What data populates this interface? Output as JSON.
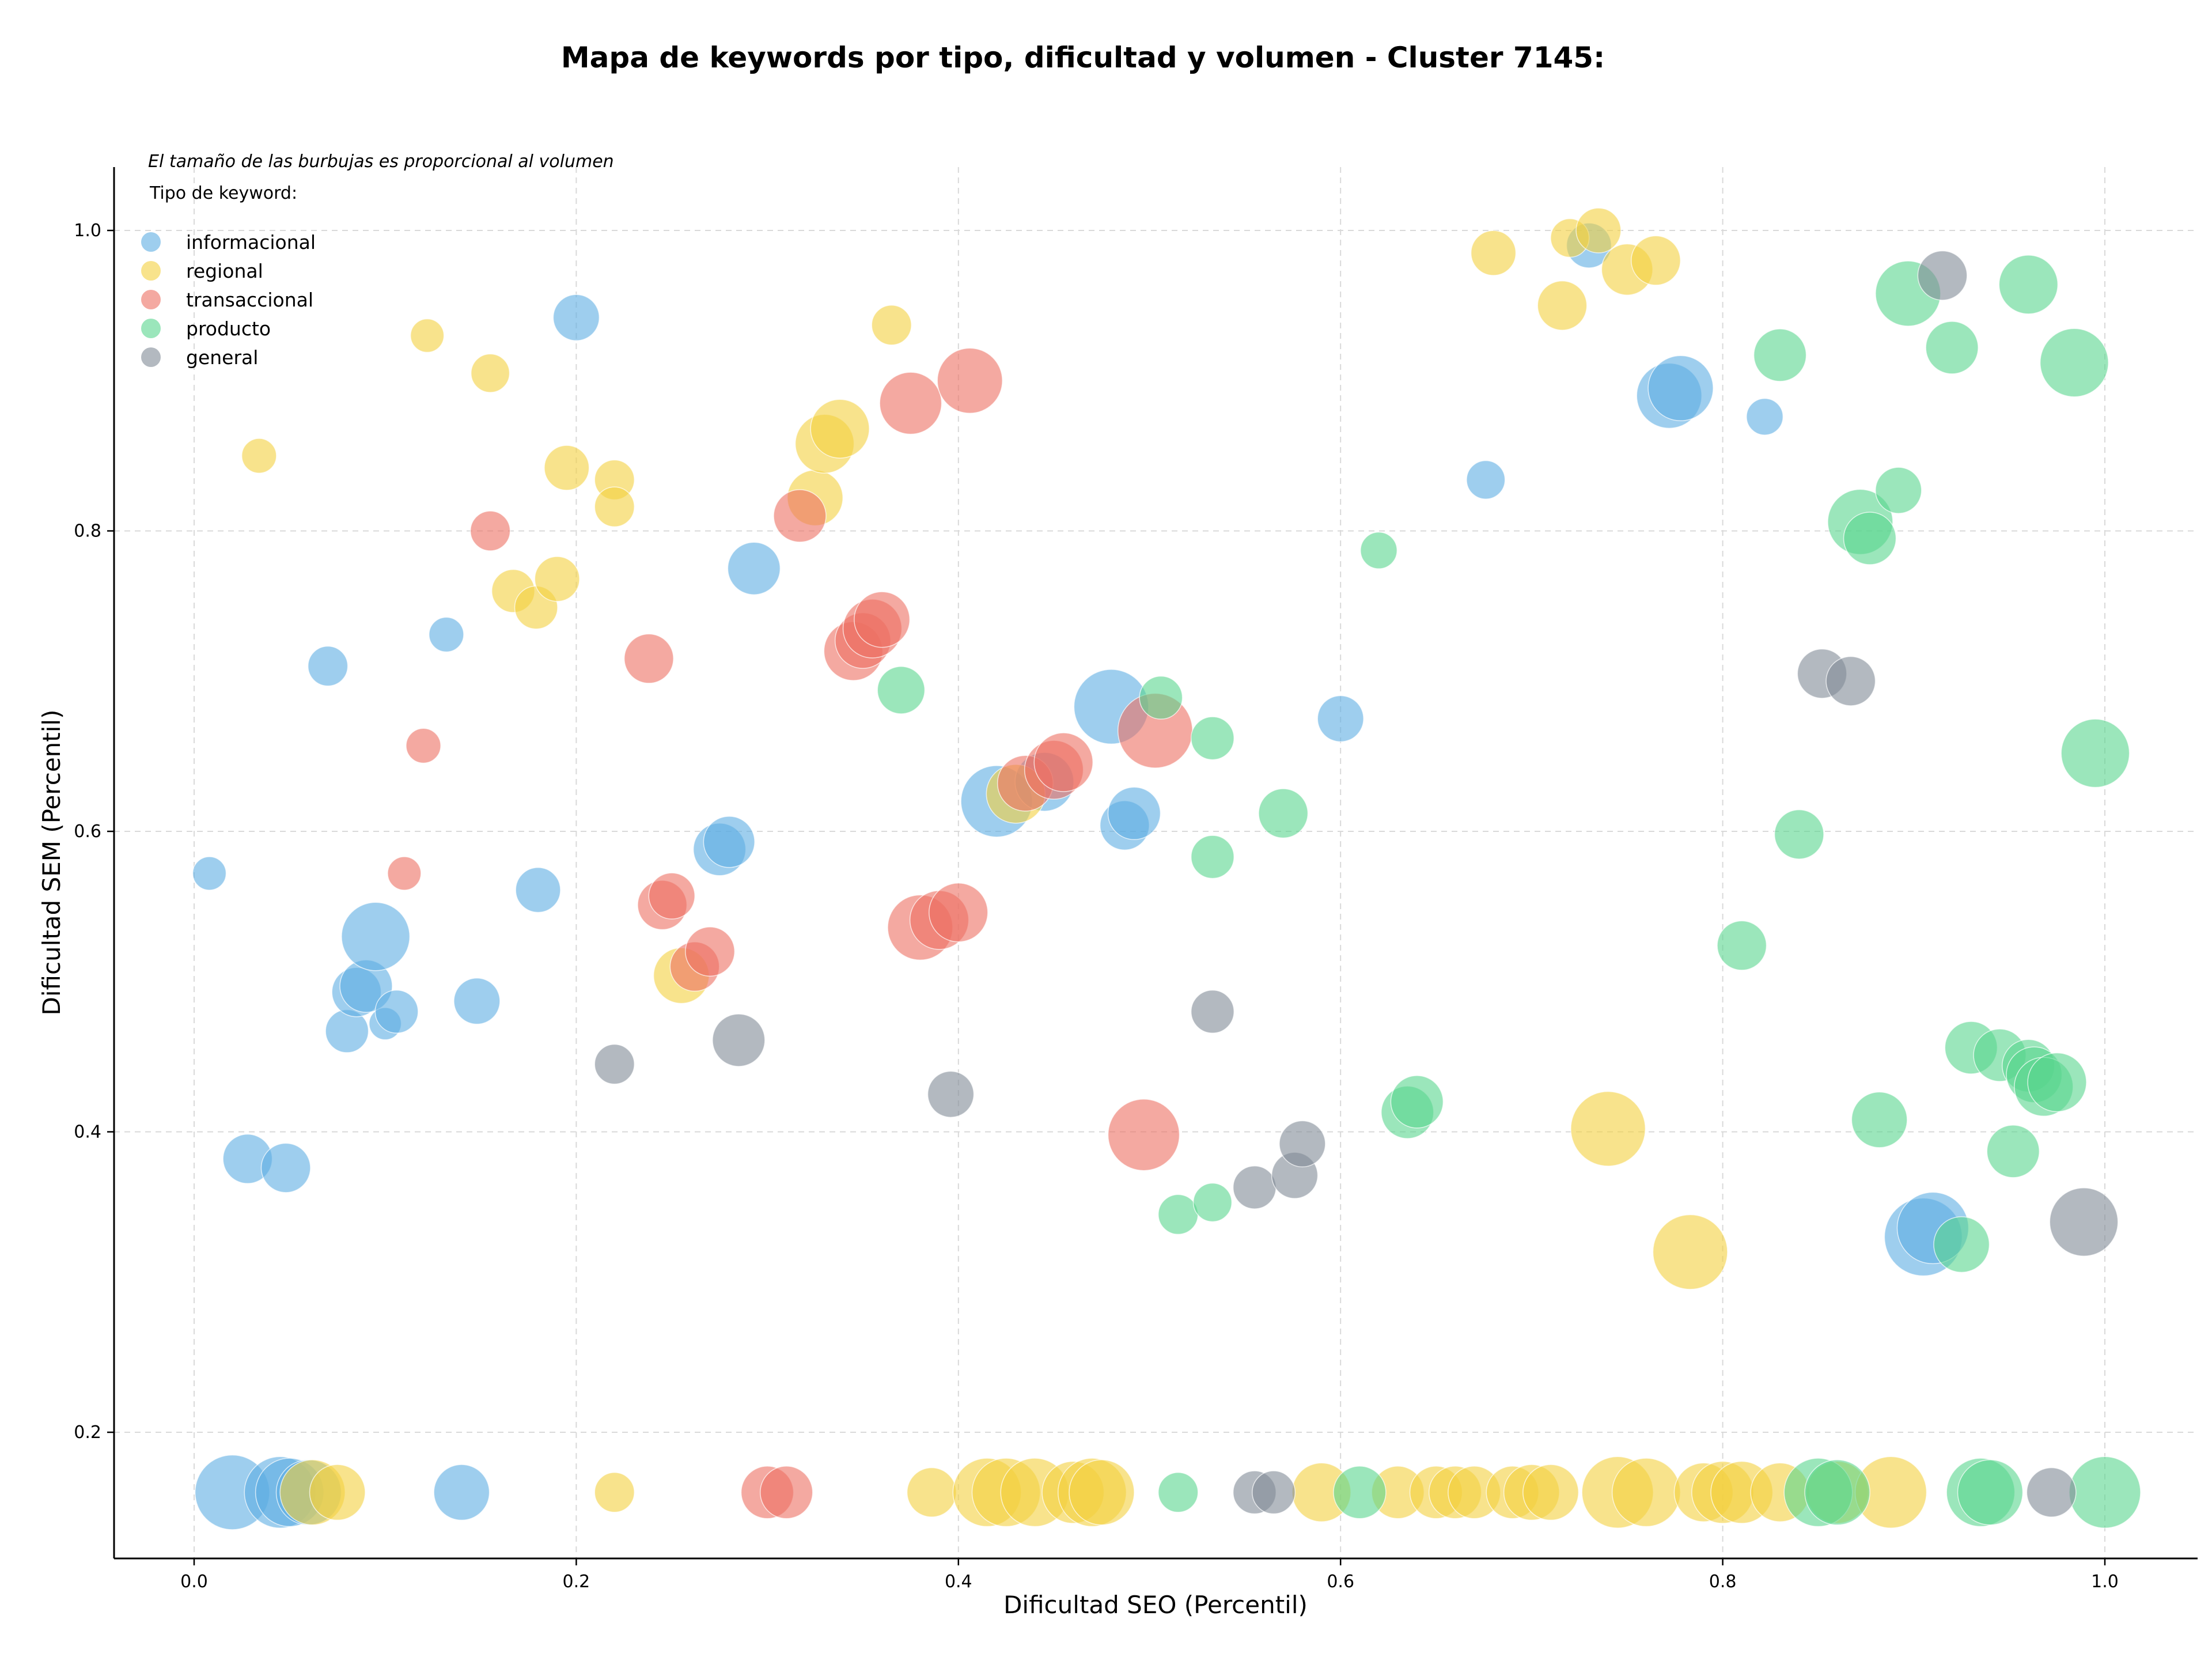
{
  "chart_data": {
    "type": "scatter",
    "title": "Mapa de keywords por tipo, dificultad y volumen - Cluster 7145:",
    "xlabel": "Dificultad SEO (Percentil)",
    "ylabel": "Dificultad SEM (Percentil)",
    "xlim": [
      -0.04,
      1.05
    ],
    "ylim": [
      0.12,
      1.04
    ],
    "xticks": [
      0.0,
      0.2,
      0.4,
      0.6,
      0.8,
      1.0
    ],
    "xtick_labels": [
      "0.0",
      "0.2",
      "0.4",
      "0.6",
      "0.8",
      "1.0"
    ],
    "yticks": [
      0.2,
      0.4,
      0.6,
      0.8,
      1.0
    ],
    "ytick_labels": [
      "0.2",
      "0.4",
      "0.6",
      "0.8",
      "1.0"
    ],
    "grid": true,
    "annotation": "El tamaño de las burbujas es proporcional al volumen",
    "legend_title": "Tipo de keyword:",
    "legend_placement": "upper-left",
    "series": [
      {
        "name": "informacional",
        "color": "#5DADE2",
        "points": [
          [
            0.008,
            0.572,
            0.2
          ],
          [
            0.02,
            0.16,
            0.85
          ],
          [
            0.028,
            0.382,
            0.45
          ],
          [
            0.045,
            0.16,
            0.8
          ],
          [
            0.048,
            0.376,
            0.45
          ],
          [
            0.05,
            0.16,
            0.75
          ],
          [
            0.06,
            0.16,
            0.7
          ],
          [
            0.07,
            0.71,
            0.3
          ],
          [
            0.08,
            0.467,
            0.35
          ],
          [
            0.085,
            0.493,
            0.45
          ],
          [
            0.09,
            0.497,
            0.5
          ],
          [
            0.095,
            0.53,
            0.75
          ],
          [
            0.1,
            0.472,
            0.18
          ],
          [
            0.106,
            0.48,
            0.35
          ],
          [
            0.132,
            0.731,
            0.22
          ],
          [
            0.14,
            0.16,
            0.55
          ],
          [
            0.148,
            0.487,
            0.4
          ],
          [
            0.18,
            0.561,
            0.38
          ],
          [
            0.2,
            0.942,
            0.4
          ],
          [
            0.275,
            0.588,
            0.5
          ],
          [
            0.28,
            0.593,
            0.48
          ],
          [
            0.293,
            0.775,
            0.5
          ],
          [
            0.42,
            0.62,
            0.8
          ],
          [
            0.445,
            0.633,
            0.6
          ],
          [
            0.48,
            0.683,
            0.85
          ],
          [
            0.487,
            0.604,
            0.45
          ],
          [
            0.492,
            0.612,
            0.5
          ],
          [
            0.6,
            0.675,
            0.4
          ],
          [
            0.676,
            0.834,
            0.28
          ],
          [
            0.73,
            0.99,
            0.38
          ],
          [
            0.772,
            0.89,
            0.7
          ],
          [
            0.778,
            0.895,
            0.7
          ],
          [
            0.822,
            0.876,
            0.25
          ],
          [
            0.905,
            0.33,
            0.9
          ],
          [
            0.91,
            0.336,
            0.8
          ]
        ]
      },
      {
        "name": "regional",
        "color": "#F4D03F",
        "points": [
          [
            0.034,
            0.85,
            0.22
          ],
          [
            0.062,
            0.16,
            0.7
          ],
          [
            0.075,
            0.16,
            0.55
          ],
          [
            0.122,
            0.93,
            0.2
          ],
          [
            0.155,
            0.905,
            0.28
          ],
          [
            0.167,
            0.76,
            0.35
          ],
          [
            0.179,
            0.749,
            0.35
          ],
          [
            0.19,
            0.768,
            0.38
          ],
          [
            0.195,
            0.842,
            0.38
          ],
          [
            0.22,
            0.834,
            0.3
          ],
          [
            0.22,
            0.816,
            0.3
          ],
          [
            0.22,
            0.16,
            0.3
          ],
          [
            0.255,
            0.504,
            0.55
          ],
          [
            0.325,
            0.822,
            0.55
          ],
          [
            0.33,
            0.858,
            0.6
          ],
          [
            0.338,
            0.868,
            0.6
          ],
          [
            0.365,
            0.937,
            0.3
          ],
          [
            0.386,
            0.16,
            0.45
          ],
          [
            0.415,
            0.16,
            0.75
          ],
          [
            0.425,
            0.16,
            0.75
          ],
          [
            0.43,
            0.625,
            0.6
          ],
          [
            0.44,
            0.16,
            0.75
          ],
          [
            0.46,
            0.16,
            0.65
          ],
          [
            0.47,
            0.16,
            0.75
          ],
          [
            0.475,
            0.16,
            0.7
          ],
          [
            0.59,
            0.16,
            0.6
          ],
          [
            0.63,
            0.16,
            0.5
          ],
          [
            0.65,
            0.16,
            0.5
          ],
          [
            0.66,
            0.16,
            0.5
          ],
          [
            0.67,
            0.16,
            0.5
          ],
          [
            0.68,
            0.985,
            0.38
          ],
          [
            0.69,
            0.16,
            0.5
          ],
          [
            0.7,
            0.16,
            0.55
          ],
          [
            0.71,
            0.16,
            0.55
          ],
          [
            0.716,
            0.95,
            0.45
          ],
          [
            0.72,
            0.995,
            0.28
          ],
          [
            0.735,
            1.0,
            0.38
          ],
          [
            0.74,
            0.402,
            0.85
          ],
          [
            0.745,
            0.16,
            0.8
          ],
          [
            0.75,
            0.974,
            0.48
          ],
          [
            0.76,
            0.16,
            0.75
          ],
          [
            0.765,
            0.98,
            0.45
          ],
          [
            0.783,
            0.32,
            0.85
          ],
          [
            0.79,
            0.16,
            0.6
          ],
          [
            0.8,
            0.16,
            0.65
          ],
          [
            0.81,
            0.16,
            0.65
          ],
          [
            0.83,
            0.16,
            0.6
          ],
          [
            0.86,
            0.16,
            0.65
          ],
          [
            0.888,
            0.16,
            0.8
          ]
        ]
      },
      {
        "name": "transaccional",
        "color": "#EC7063",
        "points": [
          [
            0.11,
            0.572,
            0.2
          ],
          [
            0.12,
            0.657,
            0.22
          ],
          [
            0.155,
            0.8,
            0.3
          ],
          [
            0.238,
            0.715,
            0.45
          ],
          [
            0.245,
            0.551,
            0.45
          ],
          [
            0.25,
            0.557,
            0.4
          ],
          [
            0.262,
            0.51,
            0.45
          ],
          [
            0.27,
            0.52,
            0.45
          ],
          [
            0.3,
            0.16,
            0.5
          ],
          [
            0.31,
            0.16,
            0.5
          ],
          [
            0.317,
            0.81,
            0.5
          ],
          [
            0.345,
            0.72,
            0.6
          ],
          [
            0.35,
            0.727,
            0.55
          ],
          [
            0.355,
            0.735,
            0.6
          ],
          [
            0.36,
            0.741,
            0.55
          ],
          [
            0.375,
            0.885,
            0.65
          ],
          [
            0.38,
            0.536,
            0.7
          ],
          [
            0.39,
            0.541,
            0.6
          ],
          [
            0.4,
            0.546,
            0.6
          ],
          [
            0.406,
            0.9,
            0.7
          ],
          [
            0.435,
            0.632,
            0.55
          ],
          [
            0.45,
            0.641,
            0.6
          ],
          [
            0.455,
            0.646,
            0.6
          ],
          [
            0.497,
            0.398,
            0.8
          ],
          [
            0.503,
            0.667,
            0.85
          ]
        ]
      },
      {
        "name": "producto",
        "color": "#58D68D",
        "points": [
          [
            0.37,
            0.694,
            0.42
          ],
          [
            0.506,
            0.689,
            0.35
          ],
          [
            0.515,
            0.345,
            0.3
          ],
          [
            0.515,
            0.16,
            0.3
          ],
          [
            0.533,
            0.662,
            0.35
          ],
          [
            0.533,
            0.583,
            0.35
          ],
          [
            0.533,
            0.353,
            0.28
          ],
          [
            0.57,
            0.612,
            0.45
          ],
          [
            0.61,
            0.16,
            0.5
          ],
          [
            0.62,
            0.787,
            0.25
          ],
          [
            0.635,
            0.413,
            0.5
          ],
          [
            0.64,
            0.42,
            0.5
          ],
          [
            0.81,
            0.524,
            0.45
          ],
          [
            0.83,
            0.917,
            0.5
          ],
          [
            0.84,
            0.598,
            0.45
          ],
          [
            0.85,
            0.16,
            0.75
          ],
          [
            0.86,
            0.16,
            0.7
          ],
          [
            0.872,
            0.806,
            0.7
          ],
          [
            0.877,
            0.795,
            0.5
          ],
          [
            0.882,
            0.408,
            0.55
          ],
          [
            0.892,
            0.827,
            0.4
          ],
          [
            0.897,
            0.958,
            0.7
          ],
          [
            0.92,
            0.922,
            0.5
          ],
          [
            0.925,
            0.325,
            0.55
          ],
          [
            0.93,
            0.456,
            0.5
          ],
          [
            0.935,
            0.16,
            0.75
          ],
          [
            0.94,
            0.16,
            0.7
          ],
          [
            0.945,
            0.451,
            0.5
          ],
          [
            0.952,
            0.387,
            0.5
          ],
          [
            0.96,
            0.444,
            0.5
          ],
          [
            0.96,
            0.964,
            0.6
          ],
          [
            0.963,
            0.438,
            0.55
          ],
          [
            0.968,
            0.43,
            0.6
          ],
          [
            0.975,
            0.433,
            0.6
          ],
          [
            0.984,
            0.912,
            0.75
          ],
          [
            0.995,
            0.652,
            0.75
          ],
          [
            1.0,
            0.16,
            0.8
          ]
        ]
      },
      {
        "name": "general",
        "color": "#808B96",
        "points": [
          [
            0.22,
            0.445,
            0.3
          ],
          [
            0.285,
            0.461,
            0.5
          ],
          [
            0.396,
            0.425,
            0.4
          ],
          [
            0.533,
            0.48,
            0.35
          ],
          [
            0.555,
            0.16,
            0.35
          ],
          [
            0.555,
            0.363,
            0.35
          ],
          [
            0.565,
            0.16,
            0.35
          ],
          [
            0.576,
            0.371,
            0.4
          ],
          [
            0.58,
            0.392,
            0.4
          ],
          [
            0.852,
            0.705,
            0.45
          ],
          [
            0.867,
            0.7,
            0.45
          ],
          [
            0.915,
            0.97,
            0.45
          ],
          [
            0.972,
            0.16,
            0.45
          ],
          [
            0.989,
            0.34,
            0.75
          ]
        ]
      }
    ]
  }
}
